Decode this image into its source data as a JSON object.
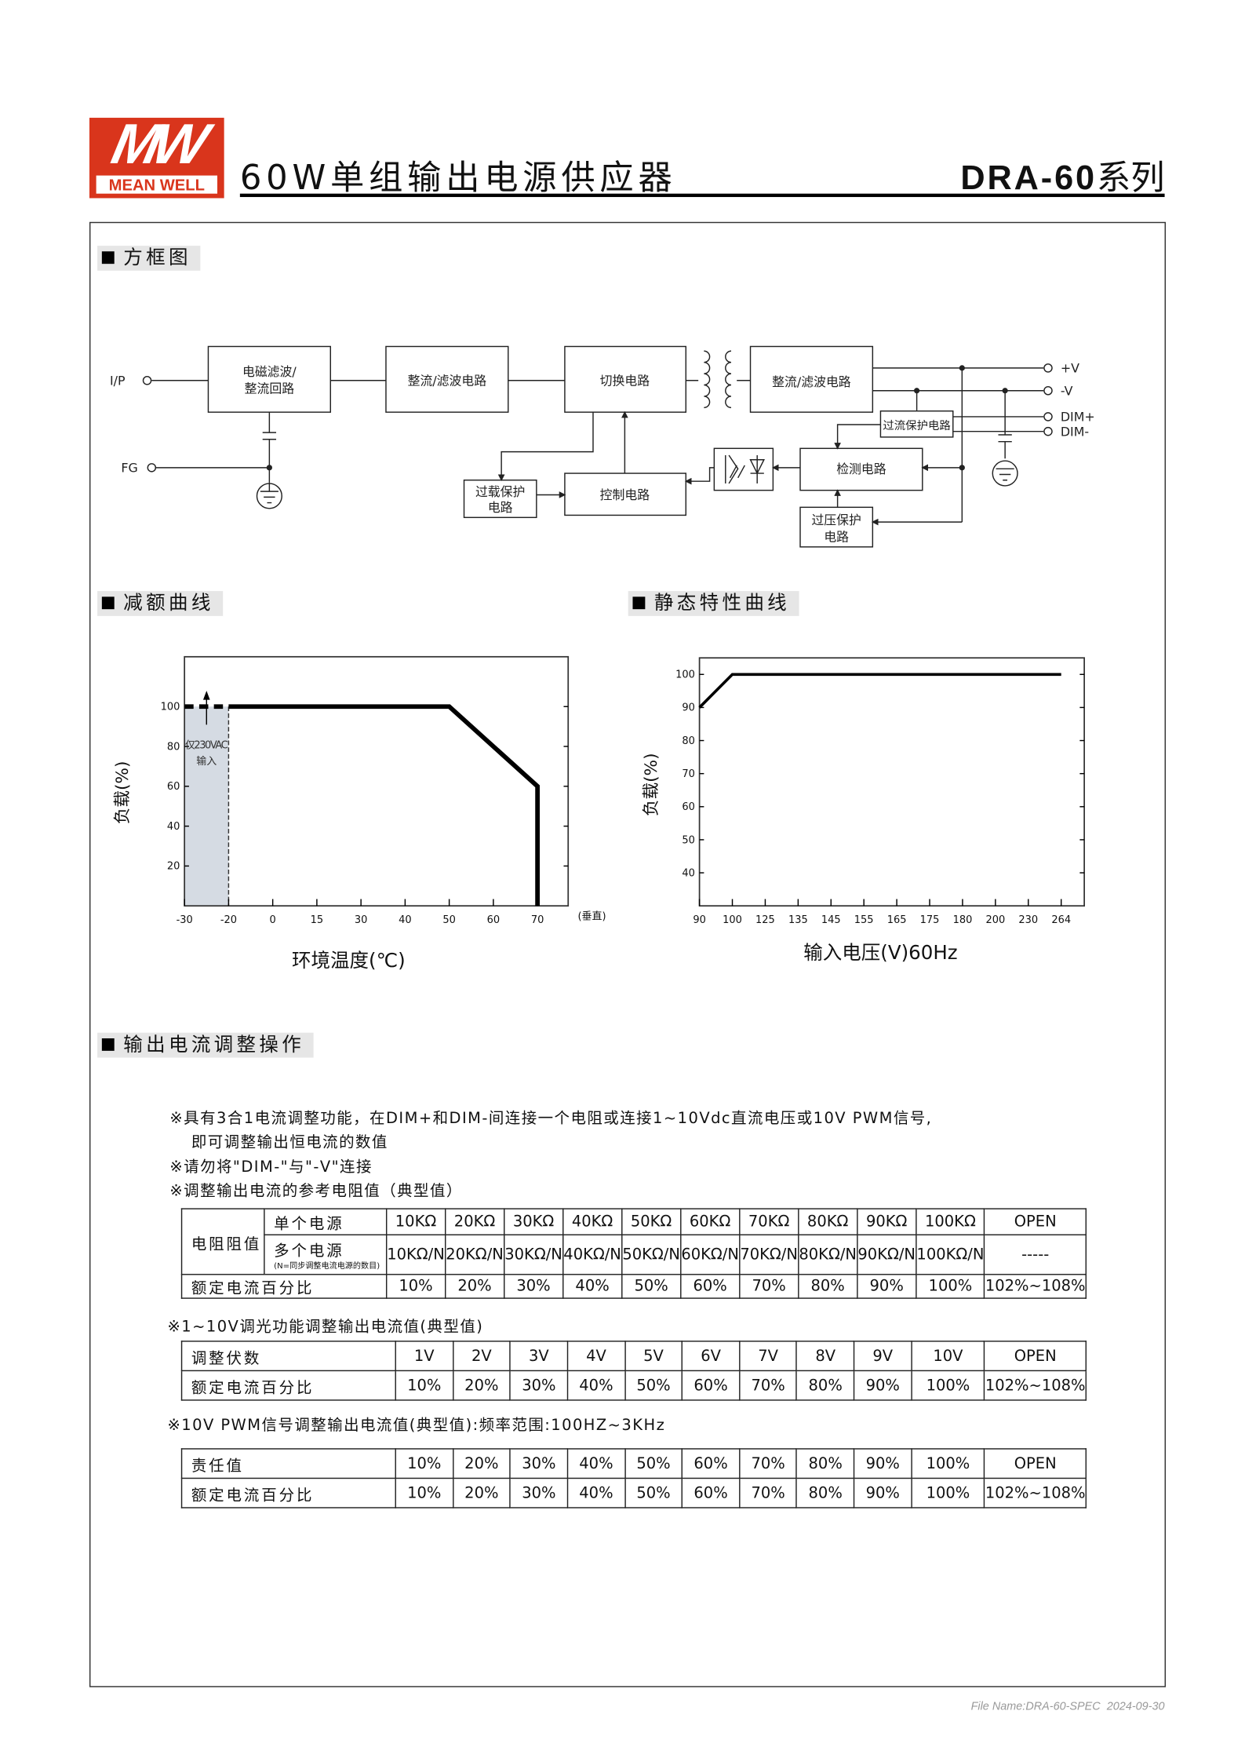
{
  "header": {
    "logo_text": "MW",
    "logo_brand": "MEAN WELL",
    "title": "60W单组输出电源供应器",
    "series_model": "DRA-60",
    "series_suffix": "系列",
    "brand_color": "#d9351c"
  },
  "block_diagram": {
    "heading": "方框图",
    "terminals": {
      "ip": "I/P",
      "fg": "FG",
      "pv": "+V",
      "nv": "-V",
      "dimp": "DIM+",
      "dimn": "DIM-"
    },
    "blocks": {
      "emi": [
        "电磁滤波/",
        "整流回路"
      ],
      "rect1": "整流/滤波电路",
      "switch": "切换电路",
      "rect2": "整流/滤波电路",
      "ocp": "过流保护电路",
      "detect": "检测电路",
      "control": "控制电路",
      "olp": [
        "过载保护",
        "电路"
      ],
      "ovp": [
        "过压保护",
        "电路"
      ]
    }
  },
  "derating": {
    "heading": "减额曲线"
  },
  "static": {
    "heading": "静态特性曲线"
  },
  "chart_data": [
    {
      "type": "line",
      "title": "减额曲线",
      "xlabel": "环境温度(℃)",
      "ylabel": "负载(%)",
      "x_ticks": [
        -30,
        -20,
        0,
        15,
        30,
        40,
        50,
        60,
        70
      ],
      "x_tick_suffix": "(垂直)",
      "y_ticks": [
        20,
        40,
        60,
        80,
        100
      ],
      "ylim": [
        0,
        125
      ],
      "series": [
        {
          "style": "dashed",
          "x": [
            -30,
            -20
          ],
          "y": [
            100,
            100
          ]
        },
        {
          "style": "solid",
          "x": [
            -20,
            50,
            70,
            70
          ],
          "y": [
            100,
            100,
            60,
            0
          ]
        }
      ],
      "shaded_region": {
        "x": [
          -30,
          -20
        ],
        "color": "#d5dbe3"
      },
      "annotation": [
        "仅230VAC",
        "输入"
      ],
      "grid": false
    },
    {
      "type": "line",
      "title": "静态特性曲线",
      "xlabel": "输入电压(V)60Hz",
      "ylabel": "负载(%)",
      "x_ticks": [
        90,
        100,
        125,
        135,
        145,
        155,
        165,
        175,
        180,
        200,
        230,
        264
      ],
      "y_ticks": [
        40,
        50,
        60,
        70,
        80,
        90,
        100
      ],
      "ylim": [
        30,
        105
      ],
      "series": [
        {
          "style": "solid",
          "x": [
            90,
            100,
            264
          ],
          "y": [
            90,
            100,
            100
          ]
        }
      ],
      "grid": false
    }
  ],
  "adjust": {
    "heading": "输出电流调整操作",
    "notes": [
      "※具有3合1电流调整功能，在DIM+和DIM-间连接一个电阻或连接1~10Vdc直流电压或10V PWM信号,",
      "即可调整输出恒电流的数值",
      "※请勿将\"DIM-\"与\"-V\"连接",
      "※调整输出电流的参考电阻值（典型值）"
    ],
    "table1": {
      "group_label": "电阻阻值",
      "single_label": "单个电源",
      "multi_label": "多个电源",
      "multi_note": "(N=同步调整电流电源的数目)",
      "single": [
        "10KΩ",
        "20KΩ",
        "30KΩ",
        "40KΩ",
        "50KΩ",
        "60KΩ",
        "70KΩ",
        "80KΩ",
        "90KΩ",
        "100KΩ",
        "OPEN"
      ],
      "multi": [
        "10KΩ/N",
        "20KΩ/N",
        "30KΩ/N",
        "40KΩ/N",
        "50KΩ/N",
        "60KΩ/N",
        "70KΩ/N",
        "80KΩ/N",
        "90KΩ/N",
        "100KΩ/N",
        "-----"
      ],
      "pct_label": "额定电流百分比",
      "pct": [
        "10%",
        "20%",
        "30%",
        "40%",
        "50%",
        "60%",
        "70%",
        "80%",
        "90%",
        "100%",
        "102%~108%"
      ]
    },
    "heading2": "※1~10V调光功能调整输出电流值(典型值)",
    "table2": {
      "row1_label": "调整伏数",
      "row1": [
        "1V",
        "2V",
        "3V",
        "4V",
        "5V",
        "6V",
        "7V",
        "8V",
        "9V",
        "10V",
        "OPEN"
      ],
      "row2_label": "额定电流百分比",
      "row2": [
        "10%",
        "20%",
        "30%",
        "40%",
        "50%",
        "60%",
        "70%",
        "80%",
        "90%",
        "100%",
        "102%~108%"
      ]
    },
    "heading3": "※10V PWM信号调整输出电流值(典型值):频率范围:100HZ~3KHz",
    "table3": {
      "row1_label": "责任值",
      "row1": [
        "10%",
        "20%",
        "30%",
        "40%",
        "50%",
        "60%",
        "70%",
        "80%",
        "90%",
        "100%",
        "OPEN"
      ],
      "row2_label": "额定电流百分比",
      "row2": [
        "10%",
        "20%",
        "30%",
        "40%",
        "50%",
        "60%",
        "70%",
        "80%",
        "90%",
        "100%",
        "102%~108%"
      ]
    }
  },
  "footer": {
    "file_name": "File Name:DRA-60-SPEC",
    "date": "2024-09-30"
  }
}
